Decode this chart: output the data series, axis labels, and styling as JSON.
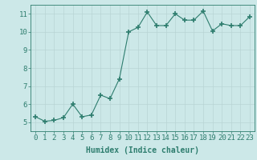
{
  "x": [
    0,
    1,
    2,
    3,
    4,
    5,
    6,
    7,
    8,
    9,
    10,
    11,
    12,
    13,
    14,
    15,
    16,
    17,
    18,
    19,
    20,
    21,
    22,
    23
  ],
  "y": [
    5.3,
    5.05,
    5.1,
    5.25,
    6.0,
    5.3,
    5.4,
    6.5,
    6.3,
    7.4,
    10.0,
    10.25,
    11.1,
    10.35,
    10.35,
    11.0,
    10.65,
    10.65,
    11.15,
    10.05,
    10.45,
    10.35,
    10.35,
    10.85
  ],
  "line_color": "#2e7d6e",
  "marker": "+",
  "marker_size": 4,
  "bg_color": "#cce8e8",
  "grid_color": "#b8d4d4",
  "xlabel": "Humidex (Indice chaleur)",
  "xlim": [
    -0.5,
    23.5
  ],
  "ylim": [
    4.5,
    11.5
  ],
  "yticks": [
    5,
    6,
    7,
    8,
    9,
    10,
    11
  ],
  "xticks": [
    0,
    1,
    2,
    3,
    4,
    5,
    6,
    7,
    8,
    9,
    10,
    11,
    12,
    13,
    14,
    15,
    16,
    17,
    18,
    19,
    20,
    21,
    22,
    23
  ],
  "tick_color": "#2e7d6e",
  "label_color": "#2e7d6e",
  "xlabel_fontsize": 7,
  "tick_fontsize": 6.5
}
